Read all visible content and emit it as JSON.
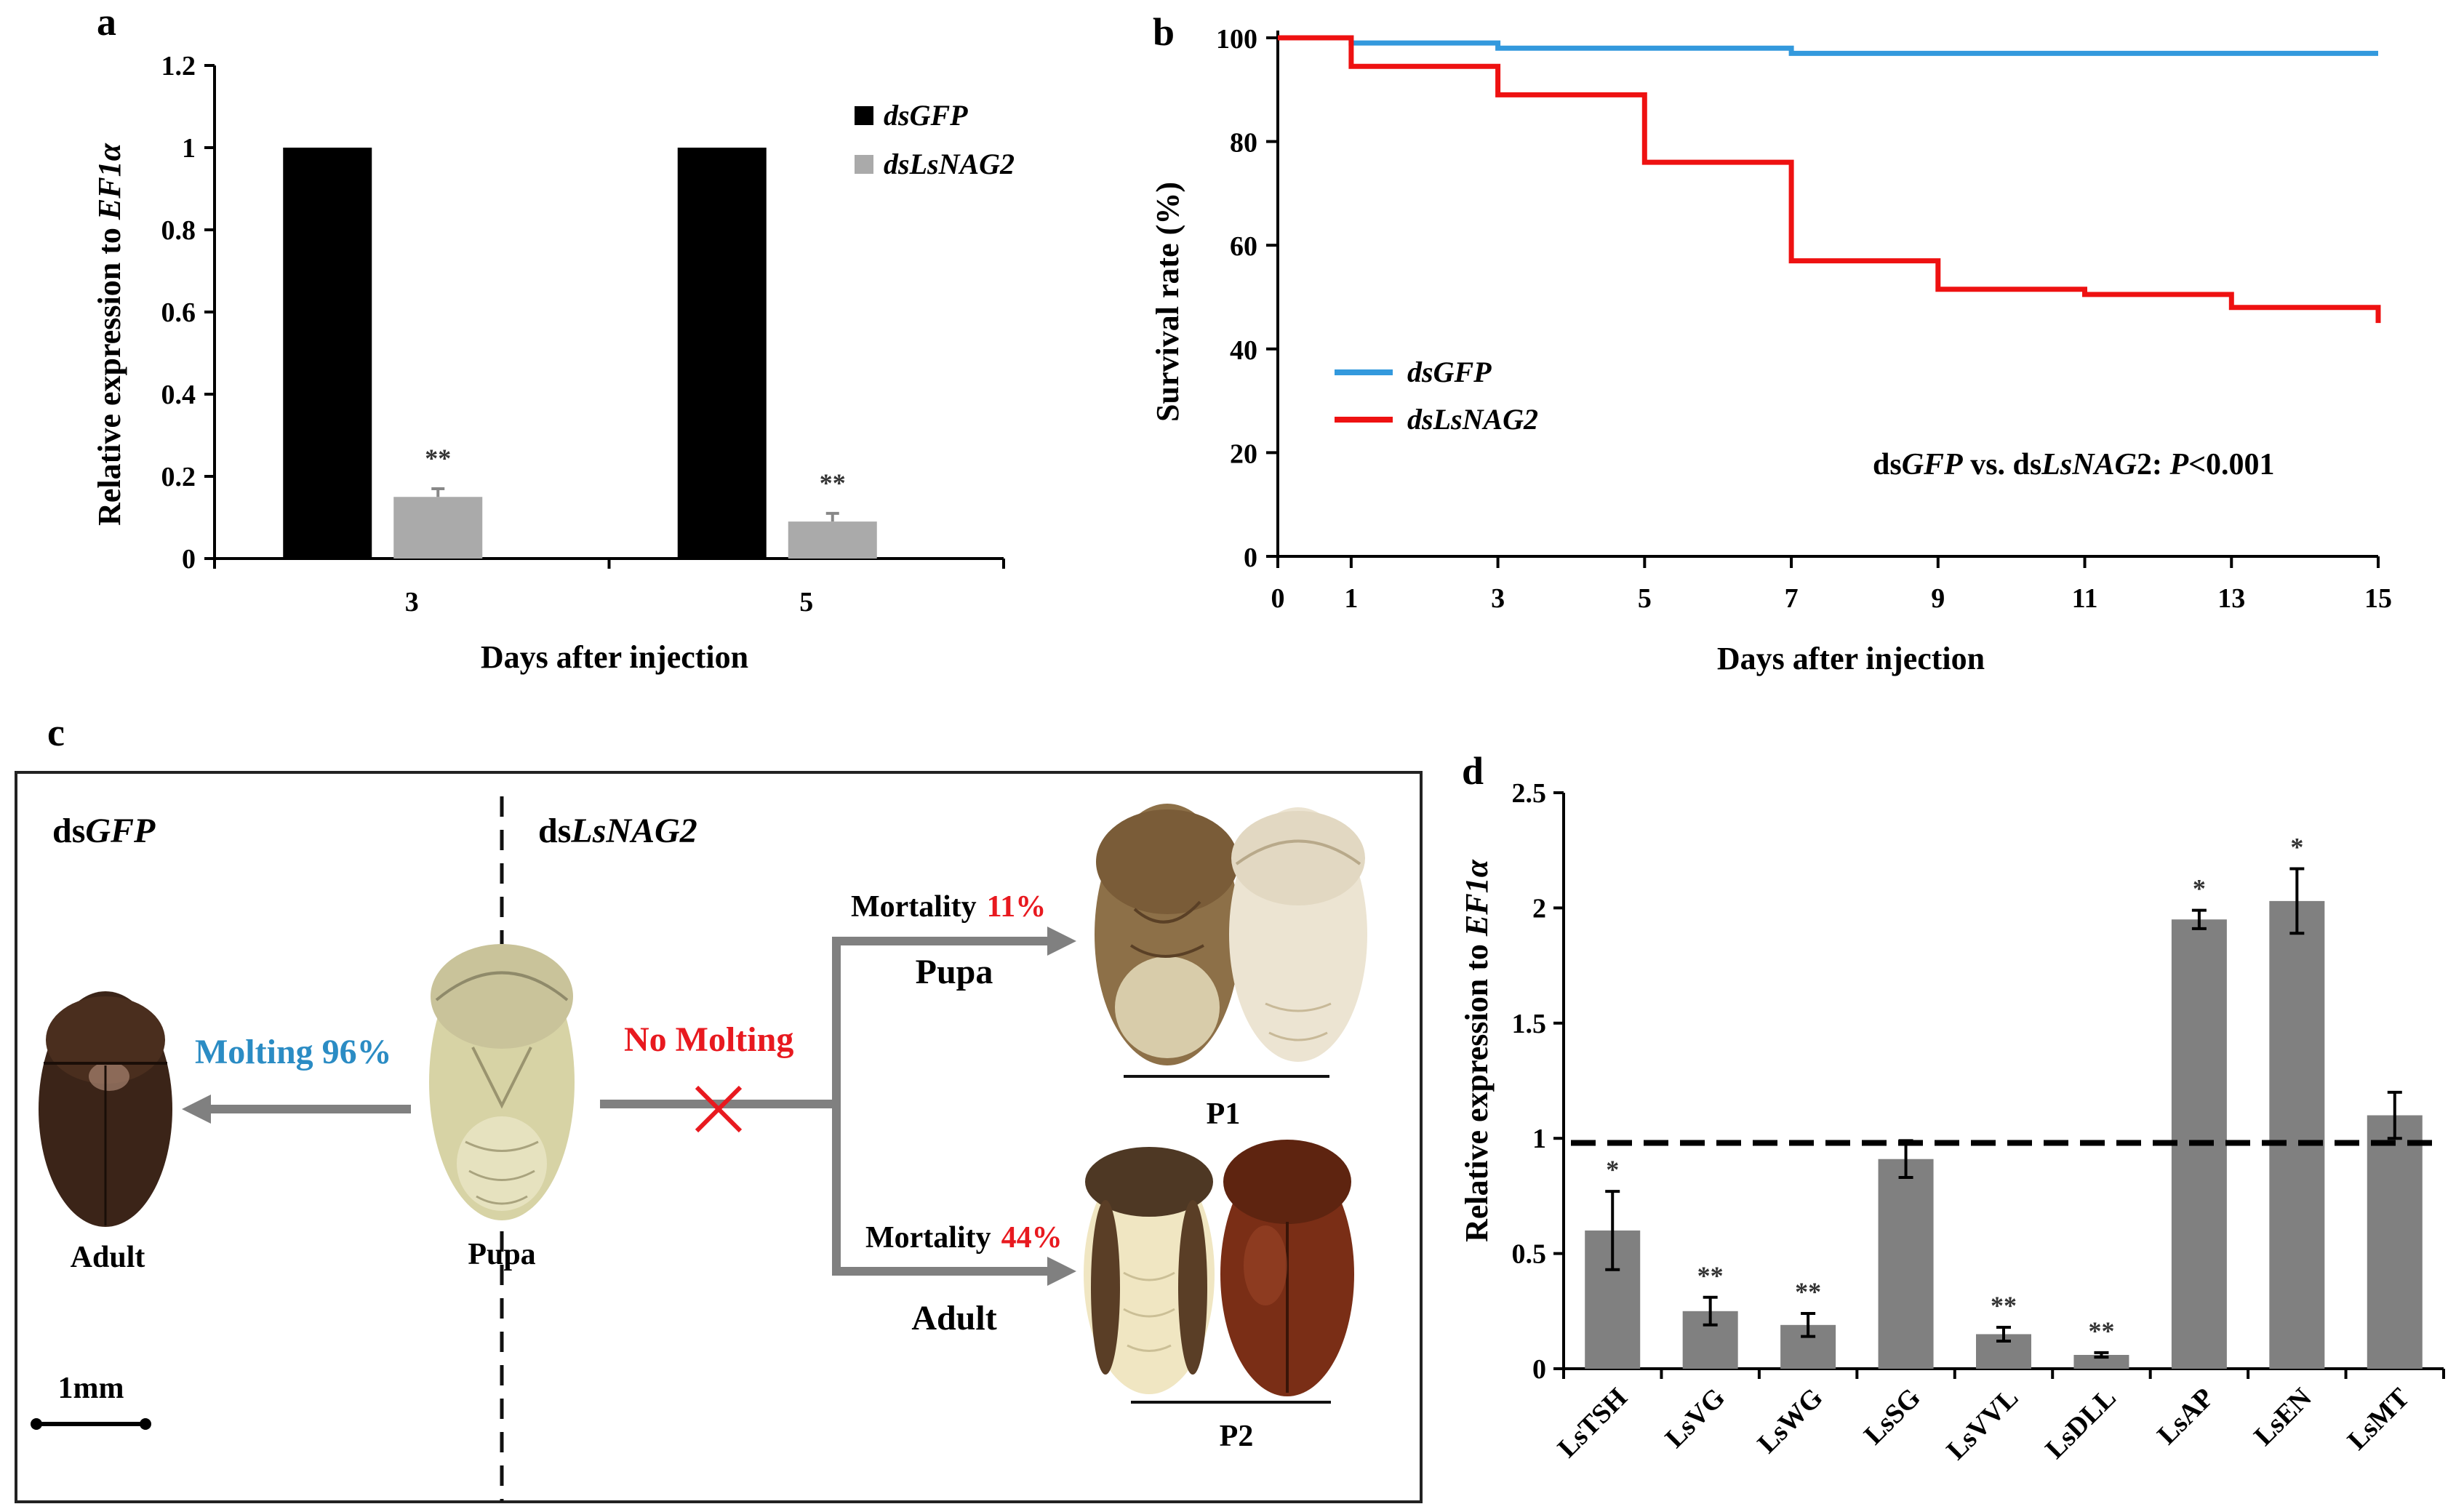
{
  "panels": {
    "a": "a",
    "b": "b",
    "c": "c",
    "d": "d"
  },
  "chart_data": [
    {
      "id": "a",
      "type": "bar",
      "categories": [
        "3",
        "5"
      ],
      "series": [
        {
          "name": "dsGFP",
          "values": [
            1.0,
            1.0
          ],
          "color": "#000000"
        },
        {
          "name": "dsLsNAG2",
          "values": [
            0.15,
            0.09
          ],
          "errors": [
            0.02,
            0.02
          ],
          "significance": [
            "**",
            "**"
          ],
          "color": "#aaaaaa"
        }
      ],
      "xlabel": "Days after injection",
      "ylabel_prefix": "Relative expression to ",
      "ylabel_gene": "EF1α",
      "ylim": [
        0,
        1.2
      ],
      "yticks": [
        "0",
        "0.2",
        "0.4",
        "0.6",
        "0.8",
        "1",
        "1.2"
      ],
      "ytick_values": [
        0,
        0.2,
        0.4,
        0.6,
        0.8,
        1.0,
        1.2
      ]
    },
    {
      "id": "b",
      "type": "line",
      "step": true,
      "series": [
        {
          "name": "dsGFP",
          "color": "#3399dd",
          "points": [
            [
              0,
              100
            ],
            [
              1,
              100
            ],
            [
              1,
              99
            ],
            [
              3,
              99
            ],
            [
              3,
              98
            ],
            [
              7,
              98
            ],
            [
              7,
              97
            ],
            [
              15,
              97
            ]
          ]
        },
        {
          "name": "dsLsNAG2",
          "color": "#ee1111",
          "points": [
            [
              0,
              100
            ],
            [
              1,
              100
            ],
            [
              1,
              94.5
            ],
            [
              3,
              94.5
            ],
            [
              3,
              89
            ],
            [
              5,
              89
            ],
            [
              5,
              76
            ],
            [
              7,
              76
            ],
            [
              7,
              57
            ],
            [
              9,
              57
            ],
            [
              9,
              51.5
            ],
            [
              11,
              51.5
            ],
            [
              11,
              50.5
            ],
            [
              13,
              50.5
            ],
            [
              13,
              48
            ],
            [
              15,
              48
            ],
            [
              15,
              45
            ]
          ]
        }
      ],
      "xlabel": "Days after injection",
      "ylabel": "Survival rate (%)",
      "xlim": [
        0,
        15
      ],
      "ylim": [
        0,
        100
      ],
      "xticks": [
        "0",
        "1",
        "3",
        "5",
        "7",
        "9",
        "11",
        "13",
        "15"
      ],
      "xtick_values": [
        0,
        1,
        3,
        5,
        7,
        9,
        11,
        13,
        15
      ],
      "yticks": [
        "0",
        "20",
        "40",
        "60",
        "80",
        "100"
      ],
      "ytick_values": [
        0,
        20,
        40,
        60,
        80,
        100
      ],
      "annotation": {
        "ds1": "ds",
        "g1": "GFP",
        "vs": " vs. ds",
        "g2": "LsNAG",
        "n2": "2",
        "colon": ": ",
        "p": "P",
        "pval": "<0.001"
      }
    },
    {
      "id": "d",
      "type": "bar",
      "categories": [
        "LsTSH",
        "LsVG",
        "LsWG",
        "LsSG",
        "LsVVL",
        "LsDLL",
        "LsAP",
        "LsEN",
        "LsMT"
      ],
      "values": [
        0.6,
        0.25,
        0.19,
        0.91,
        0.15,
        0.06,
        1.95,
        2.03,
        1.1
      ],
      "errors": [
        0.17,
        0.06,
        0.05,
        0.08,
        0.03,
        0.01,
        0.04,
        0.14,
        0.1
      ],
      "significance": [
        "*",
        "**",
        "**",
        "",
        "**",
        "**",
        "*",
        "*",
        ""
      ],
      "reference_line": 0.98,
      "ylabel_prefix": "Relative expression to ",
      "ylabel_gene": "EF1α",
      "ylim": [
        0,
        2.5
      ],
      "yticks": [
        "0",
        "0.5",
        "1",
        "1.5",
        "2",
        "2.5"
      ],
      "ytick_values": [
        0,
        0.5,
        1.0,
        1.5,
        2.0,
        2.5
      ],
      "bar_color": "#808080"
    }
  ],
  "diagram_c": {
    "left_group_prefix": "ds",
    "left_group_gene": "GFP",
    "right_group_prefix": "ds",
    "right_group_gene": "LsNAG2",
    "molting_label": "Molting  96%",
    "no_molting_label": "No Molting",
    "adult_label": "Adult",
    "pupa_label": "Pupa",
    "mortality_pupa_text": "Mortality",
    "mortality_pupa_value": "11%",
    "mortality_pupa_stage": "Pupa",
    "mortality_adult_text": "Mortality",
    "mortality_adult_value": "44%",
    "mortality_adult_stage": "Adult",
    "p1_label": "P1",
    "p2_label": "P2",
    "scale_label": "1mm",
    "colors": {
      "molting": "#2b8cc4",
      "no_molting": "#e8191f",
      "arrow": "#808080"
    }
  }
}
